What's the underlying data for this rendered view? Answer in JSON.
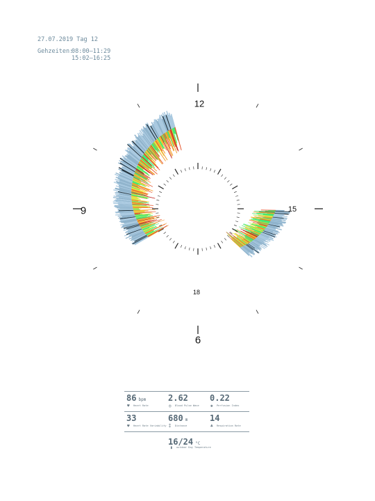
{
  "header": {
    "date_line": "27.07.2019 Tag 12",
    "times_label": "Gehzeiten:",
    "times": [
      "08:00–11:29",
      "15:02–16:25"
    ]
  },
  "clock_labels": {
    "h12": "12",
    "h15": "15",
    "h9": "9",
    "h6": "6",
    "h18": "18"
  },
  "chart_data": {
    "type": "radial-spiral-bar",
    "description_units": "hours of day (clock positions)",
    "segments": [
      {
        "name": "morning",
        "start_hour": 8.0,
        "end_hour": 11.48
      },
      {
        "name": "afternoon",
        "start_hour": 15.03,
        "end_hour": 16.42
      }
    ],
    "color_scale": [
      "#1e2f3a",
      "#8fb3cc",
      "#a9c9e0",
      "#44e870",
      "#c5e84a",
      "#f2e03a",
      "#f39a2a",
      "#e5532a",
      "#c2231f"
    ]
  },
  "stats": {
    "heart_rate": {
      "value": "86",
      "unit": "bpm",
      "caption": "Heart Rate"
    },
    "blood_pulse_wave": {
      "value": "2.62",
      "unit": "",
      "caption": "Blood Pulse Wave"
    },
    "perfusion_index": {
      "value": "0.22",
      "unit": "",
      "caption": "Perfusion Index"
    },
    "hrv": {
      "value": "33",
      "unit": "",
      "caption": "Heart Rate Variability"
    },
    "distance": {
      "value": "680",
      "unit": "m",
      "caption": "Distance"
    },
    "respiration": {
      "value": "14",
      "unit": "",
      "caption": "Respiration Rate"
    },
    "temperature": {
      "value": "16/24",
      "unit": "°C",
      "caption": "outdoor Day Temperature"
    }
  }
}
